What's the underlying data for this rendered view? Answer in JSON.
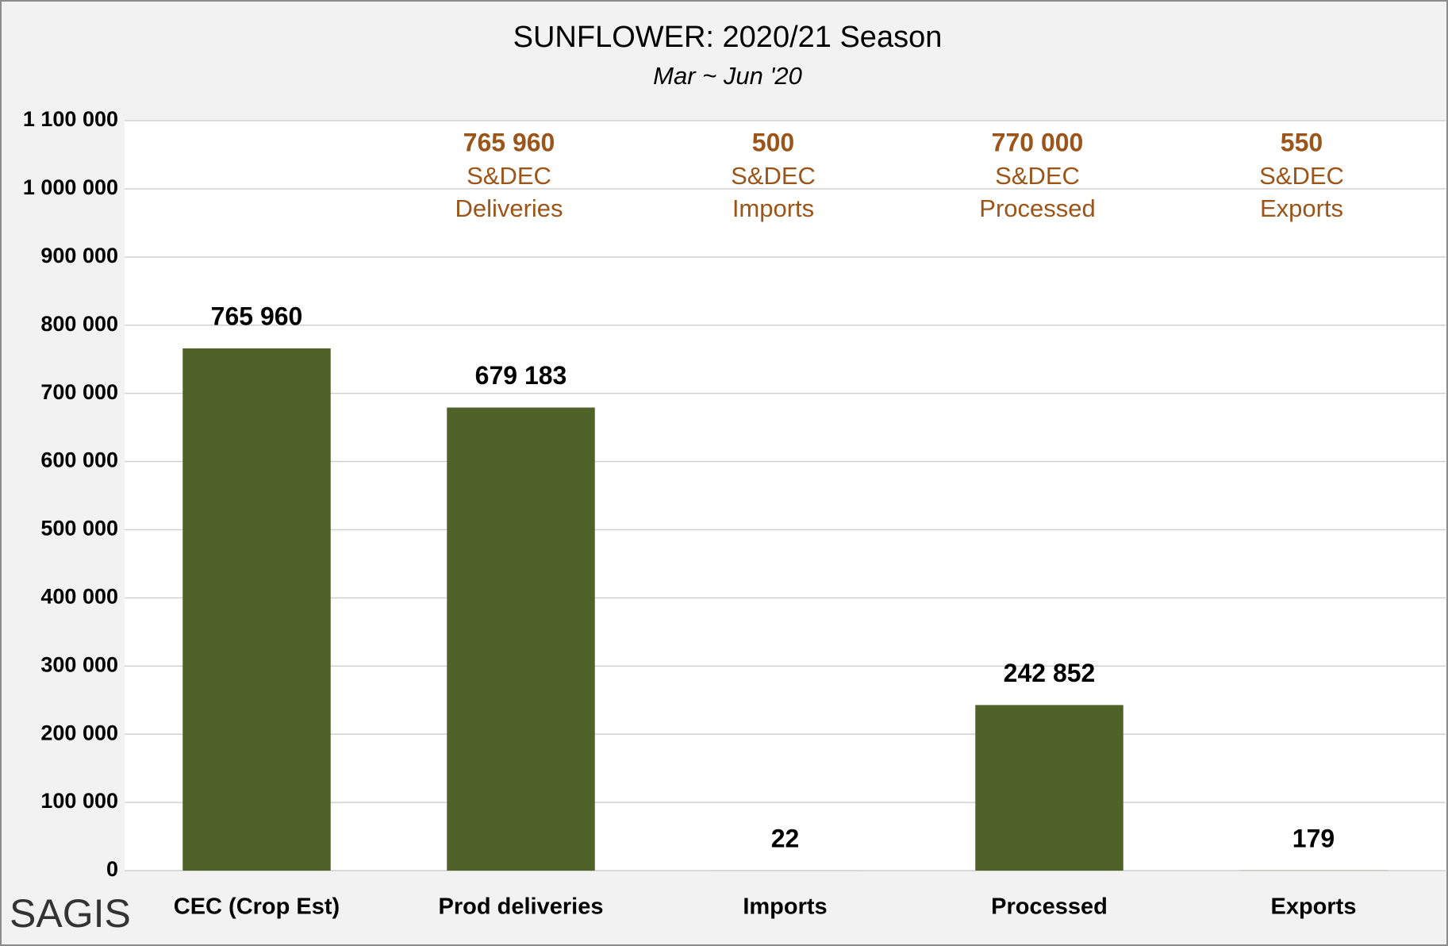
{
  "chart_data": {
    "type": "bar",
    "title": "SUNFLOWER: 2020/21 Season",
    "subtitle": "Mar ~ Jun '20",
    "categories": [
      "CEC (Crop Est)",
      "Prod deliveries",
      "Imports",
      "Processed",
      "Exports"
    ],
    "values": [
      765960,
      679183,
      22,
      242852,
      179
    ],
    "value_labels": [
      "765 960",
      "679 183",
      "22",
      "242 852",
      "179"
    ],
    "color": "#4f6228",
    "ylim": [
      0,
      1100000
    ],
    "yticks": [
      0,
      {
        "value": 100000,
        "label": "100 000"
      },
      {
        "value": 200000,
        "label": "200 000"
      },
      {
        "value": 300000,
        "label": "300 000"
      },
      {
        "value": 400000,
        "label": "400 000"
      },
      {
        "value": 500000,
        "label": "500 000"
      },
      {
        "value": 600000,
        "label": "600 000"
      },
      {
        "value": 700000,
        "label": "700 000"
      },
      {
        "value": 800000,
        "label": "800 000"
      },
      {
        "value": 900000,
        "label": "900 000"
      },
      {
        "value": 1000000,
        "label": "1 000 000"
      },
      {
        "value": 1100000,
        "label": "1 100 000"
      }
    ],
    "grid": true,
    "annotations": [
      {
        "label": "765 960",
        "lines": [
          "S&DEC",
          "Deliveries"
        ]
      },
      {
        "label": "500",
        "lines": [
          "S&DEC",
          "Imports"
        ]
      },
      {
        "label": "770 000",
        "lines": [
          "S&DEC",
          "Processed"
        ]
      },
      {
        "label": "550",
        "lines": [
          "S&DEC",
          "Exports"
        ]
      }
    ],
    "annotation_color": "#9c5519"
  },
  "logo": "SAGIS"
}
